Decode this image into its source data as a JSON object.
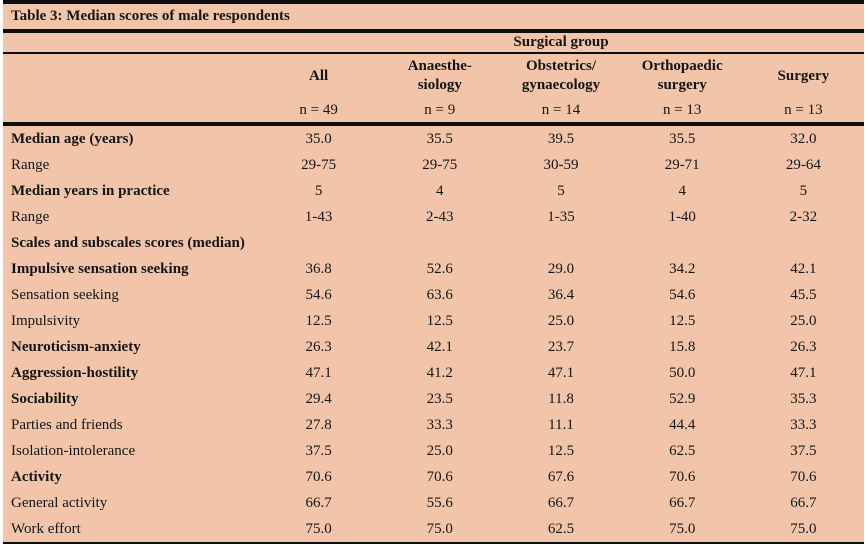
{
  "title": "Table 3: Median scores of male respondents",
  "table": {
    "group_header": "Surgical group",
    "columns": [
      {
        "label": "All",
        "n": "n = 49"
      },
      {
        "label": "Anaesthe-\nsiology",
        "n": "n = 9"
      },
      {
        "label": "Obstetrics/\ngynaecology",
        "n": "n = 14"
      },
      {
        "label": "Orthopaedic\nsurgery",
        "n": "n = 13"
      },
      {
        "label": "Surgery",
        "n": "n = 13"
      }
    ],
    "rows": [
      {
        "label": "Median age (years)",
        "bold": true,
        "values": [
          "35.0",
          "35.5",
          "39.5",
          "35.5",
          "32.0"
        ]
      },
      {
        "label": "Range",
        "bold": false,
        "values": [
          "29-75",
          "29-75",
          "30-59",
          "29-71",
          "29-64"
        ]
      },
      {
        "label": "Median years in practice",
        "bold": true,
        "values": [
          "5",
          "4",
          "5",
          "4",
          "5"
        ]
      },
      {
        "label": "Range",
        "bold": false,
        "values": [
          "1-43",
          "2-43",
          "1-35",
          "1-40",
          "2-32"
        ]
      },
      {
        "label": "Scales and subscales scores (median)",
        "bold": true,
        "values": [
          "",
          "",
          "",
          "",
          ""
        ]
      },
      {
        "label": "Impulsive sensation seeking",
        "bold": true,
        "values": [
          "36.8",
          "52.6",
          "29.0",
          "34.2",
          "42.1"
        ]
      },
      {
        "label": "Sensation seeking",
        "bold": false,
        "values": [
          "54.6",
          "63.6",
          "36.4",
          "54.6",
          "45.5"
        ]
      },
      {
        "label": "Impulsivity",
        "bold": false,
        "values": [
          "12.5",
          "12.5",
          "25.0",
          "12.5",
          "25.0"
        ]
      },
      {
        "label": "Neuroticism-anxiety",
        "bold": true,
        "values": [
          "26.3",
          "42.1",
          "23.7",
          "15.8",
          "26.3"
        ]
      },
      {
        "label": "Aggression-hostility",
        "bold": true,
        "values": [
          "47.1",
          "41.2",
          "47.1",
          "50.0",
          "47.1"
        ]
      },
      {
        "label": "Sociability",
        "bold": true,
        "values": [
          "29.4",
          "23.5",
          "11.8",
          "52.9",
          "35.3"
        ]
      },
      {
        "label": "Parties and friends",
        "bold": false,
        "values": [
          "27.8",
          "33.3",
          "11.1",
          "44.4",
          "33.3"
        ]
      },
      {
        "label": "Isolation-intolerance",
        "bold": false,
        "values": [
          "37.5",
          "25.0",
          "12.5",
          "62.5",
          "37.5"
        ]
      },
      {
        "label": "Activity",
        "bold": true,
        "values": [
          "70.6",
          "70.6",
          "67.6",
          "70.6",
          "70.6"
        ]
      },
      {
        "label": "General activity",
        "bold": false,
        "values": [
          "66.7",
          "55.6",
          "66.7",
          "66.7",
          "66.7"
        ]
      },
      {
        "label": "Work effort",
        "bold": false,
        "values": [
          "75.0",
          "75.0",
          "62.5",
          "75.0",
          "75.0"
        ]
      }
    ]
  },
  "colors": {
    "background": "#f2c5ab",
    "rule": "#0e0e0e",
    "text": "#151515"
  }
}
